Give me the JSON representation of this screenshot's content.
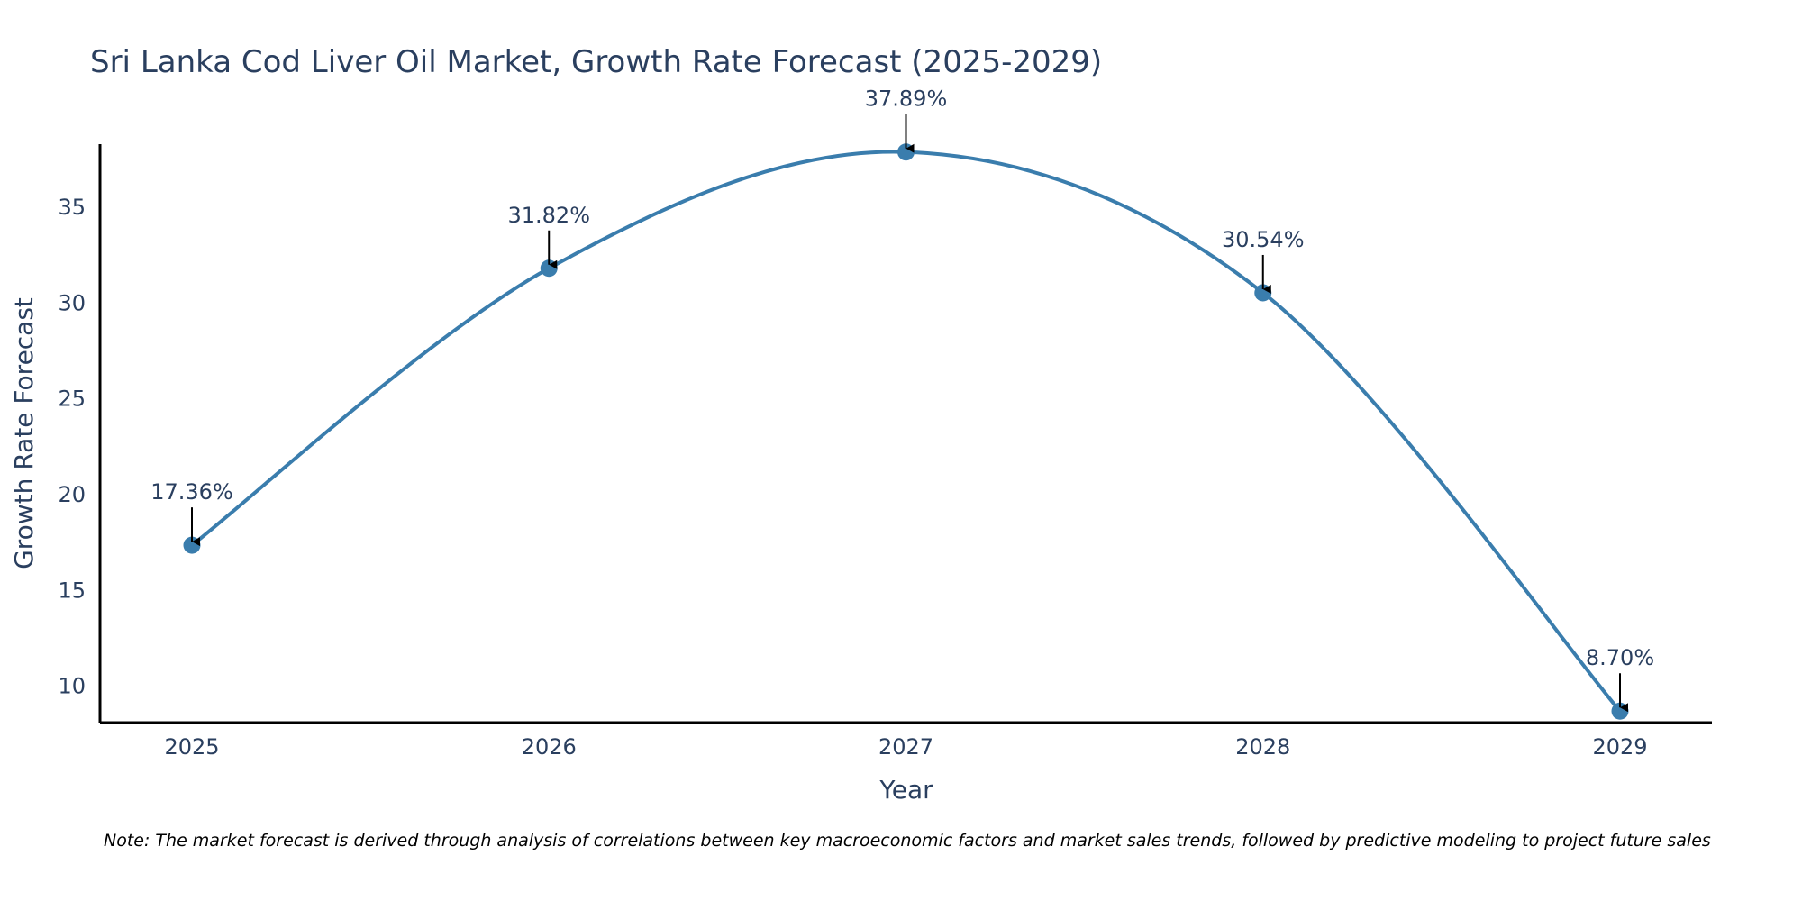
{
  "chart_data": {
    "type": "line",
    "title": "Sri Lanka Cod Liver Oil Market, Growth Rate Forecast (2025-2029)",
    "xlabel": "Year",
    "ylabel": "Growth Rate Forecast",
    "x": [
      "2025",
      "2026",
      "2027",
      "2028",
      "2029"
    ],
    "series": [
      {
        "values": [
          17.36,
          31.82,
          37.89,
          30.54,
          8.7
        ],
        "labels": [
          "17.36%",
          "31.82%",
          "37.89%",
          "30.54%",
          "8.70%"
        ]
      }
    ],
    "ylim": [
      8.1,
      38.3
    ],
    "yticks": [
      "10",
      "15",
      "20",
      "25",
      "30",
      "35"
    ],
    "grid": false,
    "line_shape": "spline",
    "line_color": "#3a7dad",
    "marker_color": "#3a7dad",
    "annotation_arrow_color": "#000000",
    "note": "Note: The market forecast is derived through analysis of correlations between key macroeconomic factors and market sales trends, followed by predictive modeling to project future sales"
  }
}
